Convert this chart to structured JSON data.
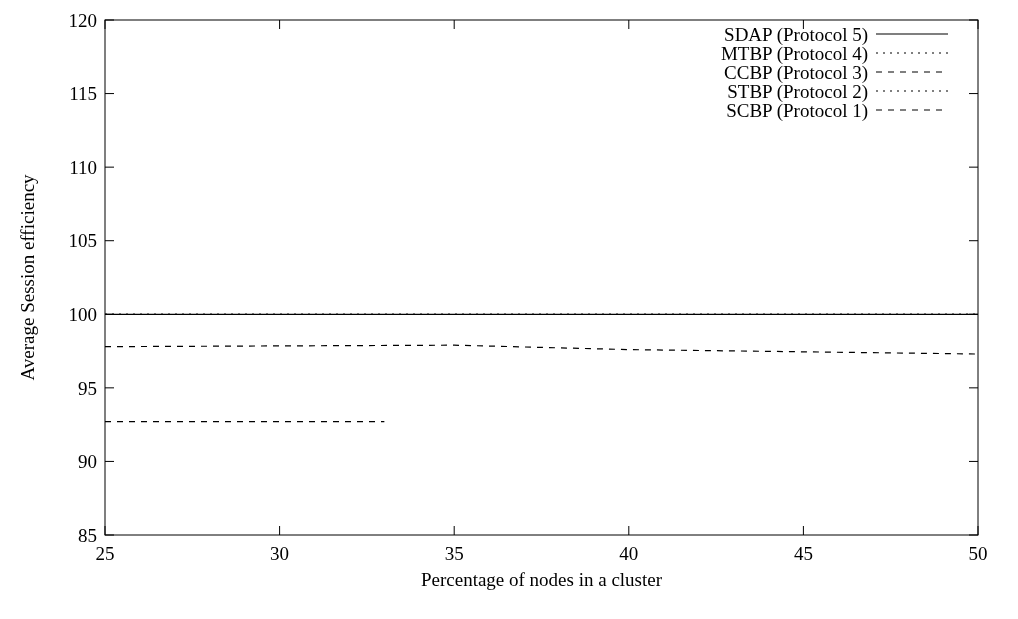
{
  "chart_data": {
    "type": "line",
    "xlabel": "Percentage of nodes in a cluster",
    "ylabel": "Average Session efficiency",
    "xlim": [
      25,
      50
    ],
    "xticks": [
      25,
      30,
      35,
      40,
      45,
      50
    ],
    "ylim": [
      85,
      120
    ],
    "yticks": [
      85,
      90,
      95,
      100,
      105,
      110,
      115,
      120
    ],
    "grid": false,
    "legend": "top right",
    "marker": "none",
    "series": [
      {
        "name": "SDAP (Protocol 5)",
        "color": "#000000",
        "line_style": "solid",
        "x": [
          25,
          30,
          35,
          40,
          45,
          50
        ],
        "values": [
          100,
          100,
          100,
          100,
          100,
          100
        ]
      },
      {
        "name": "MTBP (Protocol 4)",
        "color": "#000000",
        "line_style": "dotted",
        "x": [
          25,
          30,
          35,
          40,
          45,
          50
        ],
        "values": [
          100,
          100,
          100,
          100,
          100,
          100
        ]
      },
      {
        "name": "CCBP (Protocol 3)",
        "color": "#000000",
        "line_style": "dashed",
        "x": [
          25,
          30,
          35,
          40,
          45,
          50
        ],
        "values": [
          97.8,
          97.85,
          97.9,
          97.6,
          97.45,
          97.3
        ]
      },
      {
        "name": "STBP (Protocol 2)",
        "color": "#000000",
        "line_style": "dotted",
        "x": [
          25,
          30,
          35,
          40,
          45,
          50
        ],
        "values": [
          100,
          100,
          100,
          100,
          100,
          100
        ]
      },
      {
        "name": "SCBP (Protocol 1)",
        "color": "#000000",
        "line_style": "dashed",
        "x": [
          25,
          33
        ],
        "values": [
          92.7,
          92.7
        ]
      }
    ]
  }
}
